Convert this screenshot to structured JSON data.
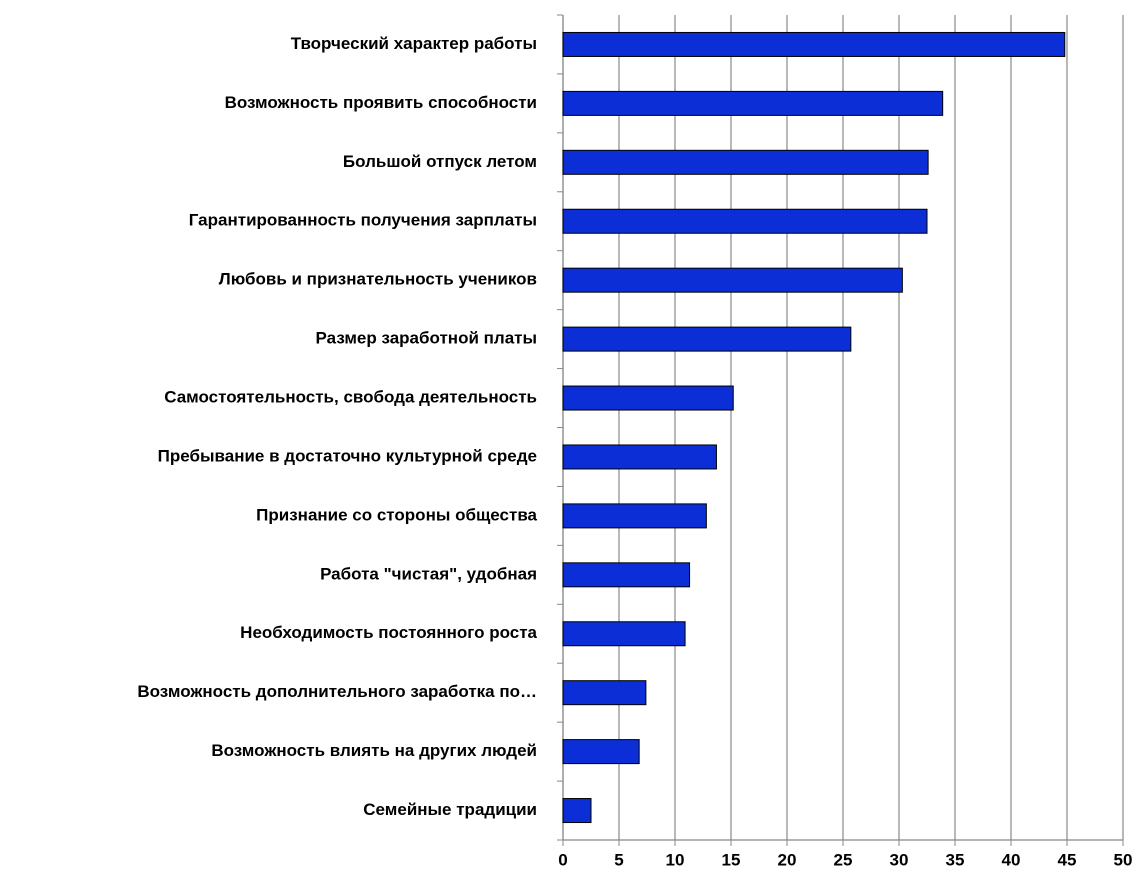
{
  "chart_data": {
    "type": "hbar",
    "categories": [
      "Творческий характер работы",
      "Возможность проявить способности",
      "Большой отпуск летом",
      "Гарантированность получения зарплаты",
      "Любовь и признательность учеников",
      "Размер заработной платы",
      "Самостоятельность, свобода деятельность",
      "Пребывание в достаточно культурной среде",
      "Признание со стороны общества",
      "Работа \"чистая\", удобная",
      "Необходимость постоянного роста",
      "Возможность дополнительного заработка по…",
      "Возможность влиять на других людей",
      "Семейные традиции"
    ],
    "values": [
      44.8,
      33.9,
      32.6,
      32.5,
      30.3,
      25.7,
      15.2,
      13.7,
      12.8,
      11.3,
      10.9,
      7.4,
      6.8,
      2.5
    ],
    "color": "#0b2ed6",
    "xlim": [
      0,
      50
    ],
    "xticks": [
      0,
      5,
      10,
      15,
      20,
      25,
      30,
      35,
      40,
      45,
      50
    ],
    "grid": true
  }
}
